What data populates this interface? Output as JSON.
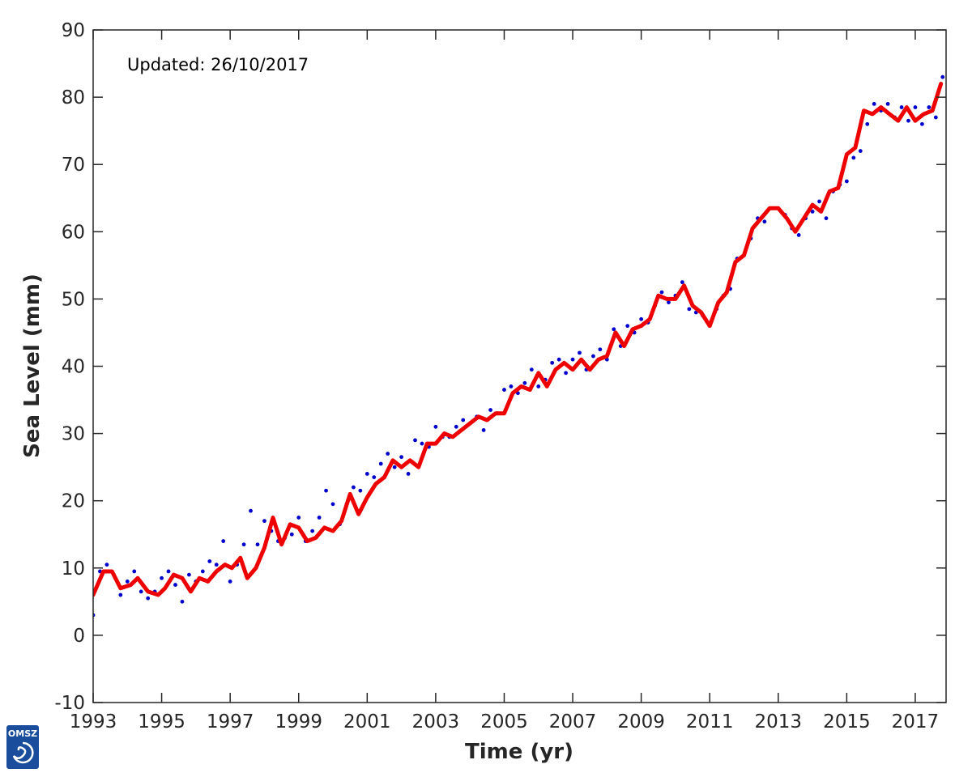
{
  "chart_data": {
    "type": "line",
    "annotation": "Updated: 26/10/2017",
    "xlabel": "Time (yr)",
    "ylabel": "Sea Level (mm)",
    "xlim": [
      1993,
      2017.9
    ],
    "ylim": [
      -10,
      90
    ],
    "xticks": [
      1993,
      1995,
      1997,
      1999,
      2001,
      2003,
      2005,
      2007,
      2009,
      2011,
      2013,
      2015,
      2017
    ],
    "yticks": [
      -10,
      0,
      10,
      20,
      30,
      40,
      50,
      60,
      70,
      80,
      90
    ],
    "grid": false,
    "legend": "none",
    "series": [
      {
        "style": "points",
        "color": "#0000cc",
        "x": [
          1993.0,
          1993.2,
          1993.4,
          1993.6,
          1993.8,
          1994.0,
          1994.2,
          1994.4,
          1994.6,
          1994.8,
          1995.0,
          1995.2,
          1995.4,
          1995.6,
          1995.8,
          1996.0,
          1996.2,
          1996.4,
          1996.6,
          1996.8,
          1997.0,
          1997.2,
          1997.4,
          1997.6,
          1997.8,
          1998.0,
          1998.2,
          1998.4,
          1998.6,
          1998.8,
          1999.0,
          1999.2,
          1999.4,
          1999.6,
          1999.8,
          2000.0,
          2000.2,
          2000.4,
          2000.6,
          2000.8,
          2001.0,
          2001.2,
          2001.4,
          2001.6,
          2001.8,
          2002.0,
          2002.2,
          2002.4,
          2002.6,
          2002.8,
          2003.0,
          2003.2,
          2003.4,
          2003.6,
          2003.8,
          2004.0,
          2004.2,
          2004.4,
          2004.6,
          2004.8,
          2005.0,
          2005.2,
          2005.4,
          2005.6,
          2005.8,
          2006.0,
          2006.2,
          2006.4,
          2006.6,
          2006.8,
          2007.0,
          2007.2,
          2007.4,
          2007.6,
          2007.8,
          2008.0,
          2008.2,
          2008.4,
          2008.6,
          2008.8,
          2009.0,
          2009.2,
          2009.4,
          2009.6,
          2009.8,
          2010.0,
          2010.2,
          2010.4,
          2010.6,
          2010.8,
          2011.0,
          2011.2,
          2011.4,
          2011.6,
          2011.8,
          2012.0,
          2012.2,
          2012.4,
          2012.6,
          2012.8,
          2013.0,
          2013.2,
          2013.4,
          2013.6,
          2013.8,
          2014.0,
          2014.2,
          2014.4,
          2014.6,
          2014.8,
          2015.0,
          2015.2,
          2015.4,
          2015.6,
          2015.8,
          2016.0,
          2016.2,
          2016.4,
          2016.6,
          2016.8,
          2017.0,
          2017.2,
          2017.4,
          2017.6,
          2017.8
        ],
        "y": [
          3.0,
          9.5,
          10.5,
          9.0,
          6.0,
          8.0,
          9.5,
          6.5,
          5.5,
          6.5,
          8.5,
          9.5,
          7.5,
          5.0,
          9.0,
          8.0,
          9.5,
          11.0,
          10.5,
          14.0,
          8.0,
          10.5,
          13.5,
          18.5,
          13.5,
          17.0,
          15.5,
          14.0,
          14.5,
          15.0,
          17.5,
          14.0,
          15.5,
          17.5,
          21.5,
          19.5,
          16.5,
          19.5,
          22.0,
          21.5,
          24.0,
          23.5,
          25.5,
          27.0,
          25.0,
          26.5,
          24.0,
          29.0,
          28.5,
          28.0,
          31.0,
          29.5,
          29.5,
          31.0,
          32.0,
          31.5,
          32.5,
          30.5,
          33.5,
          33.0,
          36.5,
          37.0,
          36.0,
          37.5,
          39.5,
          37.0,
          38.0,
          40.5,
          41.0,
          39.0,
          41.0,
          42.0,
          39.5,
          41.5,
          42.5,
          41.0,
          45.5,
          43.0,
          46.0,
          45.0,
          47.0,
          46.5,
          49.0,
          51.0,
          49.5,
          50.5,
          52.5,
          48.5,
          48.0,
          47.5,
          46.0,
          48.5,
          50.5,
          51.5,
          56.0,
          56.5,
          59.0,
          62.0,
          61.5,
          63.5,
          63.5,
          62.5,
          60.5,
          59.5,
          62.0,
          63.0,
          64.5,
          62.0,
          66.0,
          67.0,
          67.5,
          71.0,
          72.0,
          76.0,
          79.0,
          78.0,
          79.0,
          77.0,
          78.5,
          76.5,
          78.5,
          76.0,
          78.5,
          77.0,
          83.0
        ]
      },
      {
        "style": "line",
        "color": "#ee0000",
        "x": [
          1993.0,
          1993.3,
          1993.55,
          1993.8,
          1994.1,
          1994.3,
          1994.6,
          1994.9,
          1995.1,
          1995.35,
          1995.6,
          1995.85,
          1996.1,
          1996.35,
          1996.6,
          1996.85,
          1997.05,
          1997.3,
          1997.5,
          1997.75,
          1998.0,
          1998.25,
          1998.5,
          1998.75,
          1999.0,
          1999.25,
          1999.5,
          1999.75,
          2000.0,
          2000.25,
          2000.5,
          2000.75,
          2001.0,
          2001.25,
          2001.5,
          2001.75,
          2002.0,
          2002.25,
          2002.5,
          2002.75,
          2003.0,
          2003.25,
          2003.5,
          2003.75,
          2004.0,
          2004.25,
          2004.5,
          2004.75,
          2005.0,
          2005.25,
          2005.5,
          2005.75,
          2006.0,
          2006.25,
          2006.5,
          2006.75,
          2007.0,
          2007.25,
          2007.5,
          2007.75,
          2008.0,
          2008.25,
          2008.5,
          2008.75,
          2009.0,
          2009.25,
          2009.5,
          2009.75,
          2010.0,
          2010.25,
          2010.5,
          2010.75,
          2011.0,
          2011.25,
          2011.5,
          2011.75,
          2012.0,
          2012.25,
          2012.5,
          2012.75,
          2013.0,
          2013.25,
          2013.5,
          2013.75,
          2014.0,
          2014.25,
          2014.5,
          2014.75,
          2015.0,
          2015.25,
          2015.5,
          2015.75,
          2016.0,
          2016.25,
          2016.5,
          2016.75,
          2017.0,
          2017.25,
          2017.5,
          2017.75
        ],
        "y": [
          6.0,
          9.5,
          9.5,
          7.0,
          7.5,
          8.5,
          6.5,
          6.0,
          7.0,
          9.0,
          8.5,
          6.5,
          8.5,
          8.0,
          9.5,
          10.5,
          10.0,
          11.5,
          8.5,
          10.0,
          13.0,
          17.5,
          13.5,
          16.5,
          16.0,
          14.0,
          14.5,
          16.0,
          15.5,
          17.0,
          21.0,
          18.0,
          20.5,
          22.5,
          23.5,
          26.0,
          25.0,
          26.0,
          25.0,
          28.5,
          28.5,
          30.0,
          29.5,
          30.5,
          31.5,
          32.5,
          32.0,
          33.0,
          33.0,
          36.0,
          37.0,
          36.5,
          39.0,
          37.0,
          39.5,
          40.5,
          39.5,
          41.0,
          39.5,
          41.0,
          41.5,
          45.0,
          43.0,
          45.5,
          46.0,
          47.0,
          50.5,
          50.0,
          50.0,
          52.0,
          49.0,
          48.0,
          46.0,
          49.5,
          51.0,
          55.5,
          56.5,
          60.5,
          62.0,
          63.5,
          63.5,
          62.0,
          60.0,
          62.0,
          64.0,
          63.0,
          66.0,
          66.5,
          71.5,
          72.5,
          78.0,
          77.5,
          78.5,
          77.5,
          76.5,
          78.5,
          76.5,
          77.5,
          78.0,
          82.0
        ]
      }
    ]
  },
  "logo": {
    "text": "OMSZ",
    "bg_color": "#1a4d9c"
  }
}
